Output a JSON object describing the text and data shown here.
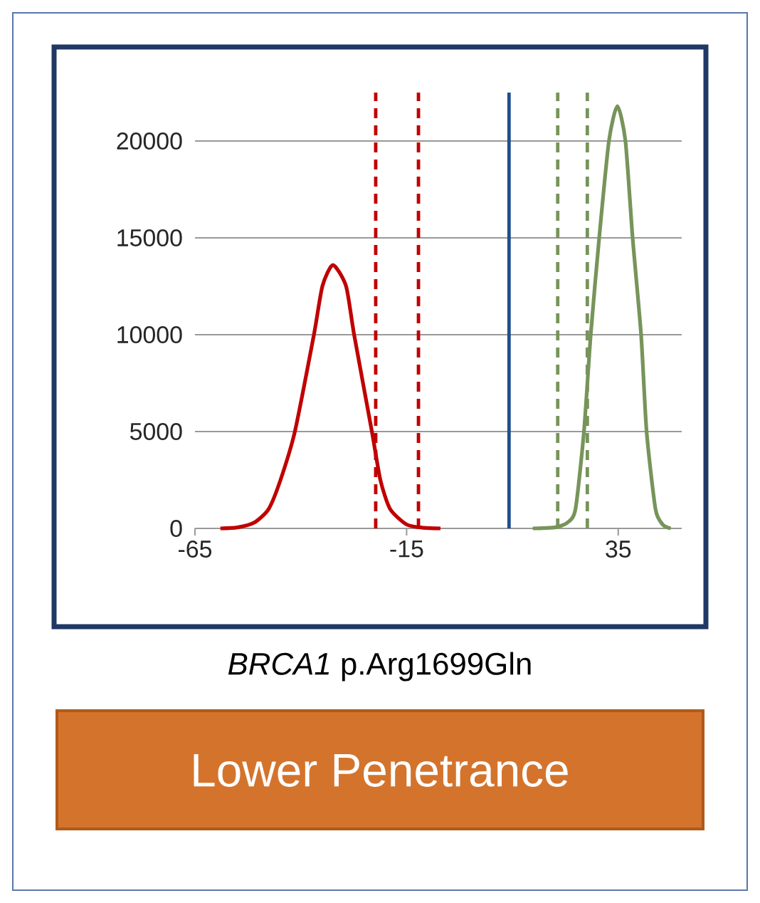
{
  "chart_data": {
    "type": "line",
    "title": "*BRCA1* p.Arg1699Gln",
    "annotations": [
      "Lower Penetrance"
    ],
    "series": [
      {
        "color": "#c00000",
        "x": [
          -59,
          -55,
          -51,
          -47.6,
          -44.8,
          -41.4,
          -36.9,
          -34.9,
          -32.4,
          -29.3,
          -27.4,
          -23.2,
          -21.2,
          -18.9,
          -15,
          -11,
          -7
        ],
        "values": [
          0,
          50,
          300,
          1000,
          2500,
          5000,
          10000,
          12500,
          13600,
          12500,
          10000,
          5000,
          2500,
          1000,
          200,
          30,
          0
        ]
      },
      {
        "color": "#77945a",
        "x": [
          14.8,
          20,
          23,
          24.9,
          26.9,
          28.5,
          30.5,
          32.8,
          34.8,
          36.7,
          38.4,
          40.4,
          41.7,
          43.8,
          45.5,
          47.4
        ],
        "values": [
          0,
          50,
          300,
          1000,
          5000,
          10000,
          15000,
          20000,
          21800,
          20000,
          15000,
          10000,
          5000,
          1000,
          200,
          0
        ]
      }
    ],
    "ref_lines": [
      {
        "axis": "x",
        "value": -22.3,
        "color": "#c00000",
        "line_style": "dashed"
      },
      {
        "axis": "x",
        "value": -12.2,
        "color": "#c00000",
        "line_style": "dashed"
      },
      {
        "axis": "x",
        "value": 9.2,
        "color": "#1f4e8c",
        "line_style": "solid"
      },
      {
        "axis": "x",
        "value": 20.7,
        "color": "#77945a",
        "line_style": "dashed"
      },
      {
        "axis": "x",
        "value": 27.7,
        "color": "#77945a",
        "line_style": "dashed"
      }
    ],
    "xlim": [
      -65,
      50
    ],
    "ylim": [
      0,
      22500
    ],
    "xticks": [
      -65,
      -15,
      35
    ],
    "yticks": [
      0,
      5000,
      10000,
      15000,
      20000
    ],
    "grid": "y"
  }
}
